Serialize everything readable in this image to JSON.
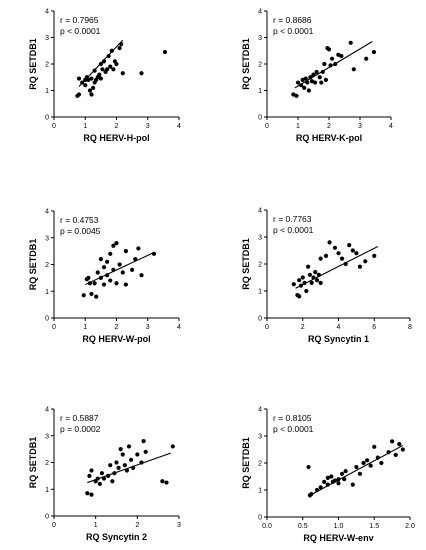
{
  "chart_data": [
    {
      "type": "scatter",
      "xlabel": "RQ HERV-H-pol",
      "ylabel": "RQ SETDB1",
      "xlim": [
        0,
        4
      ],
      "ylim": [
        0,
        4
      ],
      "xticks": [
        0,
        1,
        2,
        3,
        4
      ],
      "yticks": [
        0,
        1,
        2,
        3,
        4
      ],
      "annotation": [
        "r = 0.7965",
        "p < 0.0001"
      ],
      "trendline": [
        [
          0.8,
          1.15
        ],
        [
          2.2,
          2.9
        ]
      ],
      "points": [
        [
          0.75,
          0.8
        ],
        [
          0.8,
          0.85
        ],
        [
          0.8,
          1.45
        ],
        [
          0.9,
          1.3
        ],
        [
          1.0,
          1.4
        ],
        [
          1.0,
          1.2
        ],
        [
          1.05,
          1.5
        ],
        [
          1.1,
          1.4
        ],
        [
          1.15,
          1.0
        ],
        [
          1.2,
          0.85
        ],
        [
          1.2,
          1.45
        ],
        [
          1.25,
          1.1
        ],
        [
          1.3,
          1.3
        ],
        [
          1.3,
          1.75
        ],
        [
          1.35,
          1.4
        ],
        [
          1.4,
          1.5
        ],
        [
          1.45,
          1.6
        ],
        [
          1.5,
          1.45
        ],
        [
          1.5,
          2.0
        ],
        [
          1.55,
          1.8
        ],
        [
          1.6,
          2.1
        ],
        [
          1.65,
          1.7
        ],
        [
          1.7,
          1.8
        ],
        [
          1.75,
          2.3
        ],
        [
          1.8,
          1.9
        ],
        [
          1.85,
          2.5
        ],
        [
          1.9,
          1.8
        ],
        [
          1.95,
          2.1
        ],
        [
          2.0,
          2.0
        ],
        [
          2.1,
          2.6
        ],
        [
          2.15,
          2.75
        ],
        [
          2.2,
          1.65
        ],
        [
          2.8,
          1.65
        ],
        [
          3.55,
          2.45
        ]
      ]
    },
    {
      "type": "scatter",
      "xlabel": "RQ HERV-K-pol",
      "ylabel": "RQ SETDB1",
      "xlim": [
        0,
        4
      ],
      "ylim": [
        0,
        4
      ],
      "xticks": [
        0,
        1,
        2,
        3,
        4
      ],
      "yticks": [
        0,
        1,
        2,
        3,
        4
      ],
      "annotation": [
        "r = 0.8686",
        "p < 0.0001"
      ],
      "trendline": [
        [
          0.9,
          1.1
        ],
        [
          3.4,
          2.85
        ]
      ],
      "points": [
        [
          0.85,
          0.85
        ],
        [
          0.95,
          0.8
        ],
        [
          1.0,
          1.3
        ],
        [
          1.1,
          1.2
        ],
        [
          1.15,
          1.4
        ],
        [
          1.2,
          1.1
        ],
        [
          1.25,
          1.45
        ],
        [
          1.3,
          1.3
        ],
        [
          1.35,
          1.0
        ],
        [
          1.4,
          1.5
        ],
        [
          1.45,
          1.35
        ],
        [
          1.5,
          1.6
        ],
        [
          1.55,
          1.3
        ],
        [
          1.6,
          1.7
        ],
        [
          1.7,
          1.5
        ],
        [
          1.75,
          1.3
        ],
        [
          1.8,
          1.7
        ],
        [
          1.85,
          2.0
        ],
        [
          1.9,
          1.4
        ],
        [
          1.95,
          2.6
        ],
        [
          2.0,
          2.55
        ],
        [
          2.05,
          1.95
        ],
        [
          2.1,
          2.2
        ],
        [
          2.2,
          2.0
        ],
        [
          2.3,
          2.35
        ],
        [
          2.4,
          2.3
        ],
        [
          2.7,
          2.8
        ],
        [
          2.8,
          1.8
        ],
        [
          3.2,
          2.2
        ],
        [
          3.45,
          2.45
        ]
      ]
    },
    {
      "type": "scatter",
      "xlabel": "RQ HERV-W-pol",
      "ylabel": "RQ SETDB1",
      "xlim": [
        0,
        4
      ],
      "ylim": [
        0,
        4
      ],
      "xticks": [
        0,
        1,
        2,
        3,
        4
      ],
      "yticks": [
        0,
        1,
        2,
        3,
        4
      ],
      "annotation": [
        "r = 0.4753",
        "p = 0.0045"
      ],
      "trendline": [
        [
          1.0,
          1.25
        ],
        [
          3.2,
          2.45
        ]
      ],
      "points": [
        [
          0.95,
          0.85
        ],
        [
          1.05,
          1.45
        ],
        [
          1.1,
          1.5
        ],
        [
          1.15,
          1.3
        ],
        [
          1.2,
          0.9
        ],
        [
          1.3,
          1.3
        ],
        [
          1.35,
          0.8
        ],
        [
          1.4,
          1.7
        ],
        [
          1.5,
          1.5
        ],
        [
          1.5,
          2.2
        ],
        [
          1.6,
          1.9
        ],
        [
          1.6,
          1.25
        ],
        [
          1.7,
          2.1
        ],
        [
          1.7,
          1.6
        ],
        [
          1.8,
          2.4
        ],
        [
          1.8,
          1.4
        ],
        [
          1.9,
          1.8
        ],
        [
          1.9,
          2.7
        ],
        [
          2.0,
          1.3
        ],
        [
          2.0,
          2.8
        ],
        [
          2.1,
          2.0
        ],
        [
          2.2,
          1.7
        ],
        [
          2.3,
          2.5
        ],
        [
          2.3,
          1.25
        ],
        [
          2.5,
          1.8
        ],
        [
          2.6,
          2.2
        ],
        [
          2.7,
          2.6
        ],
        [
          2.8,
          1.6
        ],
        [
          3.2,
          2.4
        ]
      ]
    },
    {
      "type": "scatter",
      "xlabel": "RQ Syncytin 1",
      "ylabel": "RQ SETDB1",
      "xlim": [
        0,
        8
      ],
      "ylim": [
        0,
        4
      ],
      "xticks": [
        0,
        2,
        4,
        6,
        8
      ],
      "yticks": [
        0,
        1,
        2,
        3,
        4
      ],
      "annotation": [
        "r = 0.7763",
        "p < 0.0001"
      ],
      "trendline": [
        [
          1.6,
          1.1
        ],
        [
          6.2,
          2.65
        ]
      ],
      "points": [
        [
          1.5,
          1.25
        ],
        [
          1.7,
          0.85
        ],
        [
          1.8,
          0.8
        ],
        [
          1.8,
          1.4
        ],
        [
          1.9,
          1.2
        ],
        [
          2.0,
          1.5
        ],
        [
          2.1,
          1.3
        ],
        [
          2.2,
          1.0
        ],
        [
          2.3,
          1.9
        ],
        [
          2.4,
          1.6
        ],
        [
          2.5,
          1.3
        ],
        [
          2.6,
          1.5
        ],
        [
          2.7,
          1.7
        ],
        [
          2.8,
          1.4
        ],
        [
          2.9,
          1.6
        ],
        [
          3.0,
          1.3
        ],
        [
          3.0,
          2.2
        ],
        [
          3.3,
          2.3
        ],
        [
          3.5,
          2.8
        ],
        [
          3.8,
          2.6
        ],
        [
          4.0,
          2.4
        ],
        [
          4.2,
          2.2
        ],
        [
          4.4,
          2.0
        ],
        [
          4.6,
          2.7
        ],
        [
          4.8,
          2.5
        ],
        [
          5.0,
          2.4
        ],
        [
          5.2,
          1.9
        ],
        [
          5.5,
          2.1
        ],
        [
          6.0,
          2.3
        ]
      ]
    },
    {
      "type": "scatter",
      "xlabel": "RQ Syncytin 2",
      "ylabel": "RQ SETDB1",
      "xlim": [
        0,
        3
      ],
      "ylim": [
        0,
        4
      ],
      "xticks": [
        0,
        1,
        2,
        3
      ],
      "yticks": [
        0,
        1,
        2,
        3,
        4
      ],
      "annotation": [
        "r = 0.5887",
        "p = 0.0002"
      ],
      "trendline": [
        [
          0.8,
          1.25
        ],
        [
          2.8,
          2.35
        ]
      ],
      "points": [
        [
          0.8,
          0.85
        ],
        [
          0.85,
          1.5
        ],
        [
          0.9,
          0.8
        ],
        [
          0.9,
          1.7
        ],
        [
          1.0,
          1.3
        ],
        [
          1.05,
          1.4
        ],
        [
          1.1,
          1.2
        ],
        [
          1.15,
          1.6
        ],
        [
          1.2,
          1.4
        ],
        [
          1.3,
          1.5
        ],
        [
          1.35,
          1.9
        ],
        [
          1.4,
          1.3
        ],
        [
          1.45,
          1.6
        ],
        [
          1.5,
          2.0
        ],
        [
          1.55,
          1.8
        ],
        [
          1.6,
          2.5
        ],
        [
          1.65,
          2.3
        ],
        [
          1.7,
          1.9
        ],
        [
          1.75,
          1.7
        ],
        [
          1.8,
          2.6
        ],
        [
          1.85,
          2.1
        ],
        [
          1.9,
          1.8
        ],
        [
          2.0,
          2.3
        ],
        [
          2.1,
          2.0
        ],
        [
          2.15,
          2.8
        ],
        [
          2.2,
          2.4
        ],
        [
          2.6,
          1.3
        ],
        [
          2.7,
          1.25
        ],
        [
          2.85,
          2.6
        ]
      ]
    },
    {
      "type": "scatter",
      "xlabel": "RQ HERV-W-env",
      "ylabel": "RQ SETDB1",
      "xlim": [
        0,
        2
      ],
      "ylim": [
        0,
        4
      ],
      "xticks": [
        0.0,
        0.5,
        1.0,
        1.5,
        2.0
      ],
      "yticks": [
        0,
        1,
        2,
        3,
        4
      ],
      "annotation": [
        "r = 0.8105",
        "p < 0.0001"
      ],
      "trendline": [
        [
          0.6,
          0.8
        ],
        [
          1.9,
          2.65
        ]
      ],
      "points": [
        [
          0.58,
          1.85
        ],
        [
          0.6,
          0.8
        ],
        [
          0.62,
          0.85
        ],
        [
          0.7,
          1.0
        ],
        [
          0.75,
          1.1
        ],
        [
          0.8,
          1.3
        ],
        [
          0.85,
          1.45
        ],
        [
          0.85,
          1.2
        ],
        [
          0.9,
          1.5
        ],
        [
          0.92,
          1.3
        ],
        [
          0.95,
          1.35
        ],
        [
          1.0,
          1.4
        ],
        [
          1.0,
          1.25
        ],
        [
          1.05,
          1.6
        ],
        [
          1.08,
          1.4
        ],
        [
          1.1,
          1.7
        ],
        [
          1.2,
          1.2
        ],
        [
          1.25,
          1.85
        ],
        [
          1.3,
          1.6
        ],
        [
          1.35,
          2.0
        ],
        [
          1.4,
          2.1
        ],
        [
          1.45,
          1.9
        ],
        [
          1.5,
          2.6
        ],
        [
          1.55,
          2.2
        ],
        [
          1.6,
          2.0
        ],
        [
          1.7,
          2.4
        ],
        [
          1.75,
          2.8
        ],
        [
          1.8,
          2.3
        ],
        [
          1.85,
          2.7
        ],
        [
          1.9,
          2.5
        ]
      ]
    }
  ]
}
